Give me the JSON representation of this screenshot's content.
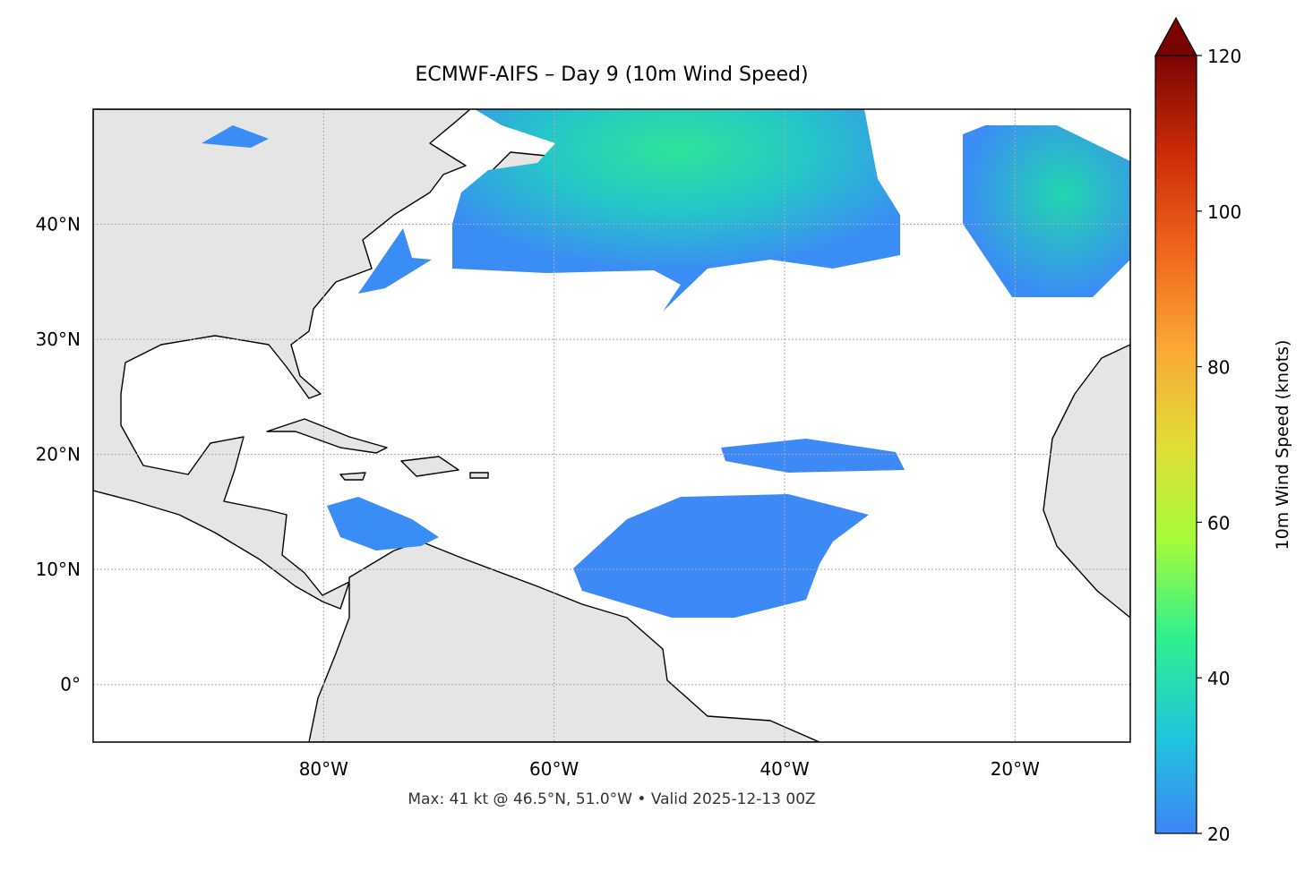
{
  "map": {
    "title": "ECMWF-AIFS – Day 9 (10m Wind Speed)",
    "footer": "Max: 41 kt @ 46.5°N, 51.0°W • Valid 2025-12-13 00Z",
    "xlim": [
      -100,
      -10
    ],
    "ylim": [
      -5,
      50
    ],
    "xticks": [
      {
        "value": -80,
        "label": "80°W"
      },
      {
        "value": -60,
        "label": "60°W"
      },
      {
        "value": -40,
        "label": "40°W"
      },
      {
        "value": -20,
        "label": "20°W"
      }
    ],
    "yticks": [
      {
        "value": 0,
        "label": "0°"
      },
      {
        "value": 10,
        "label": "10°N"
      },
      {
        "value": 20,
        "label": "20°N"
      },
      {
        "value": 30,
        "label": "30°N"
      },
      {
        "value": 40,
        "label": "40°N"
      }
    ],
    "grid": true
  },
  "colorbar": {
    "label": "10m Wind Speed (knots)",
    "lim": [
      20,
      120
    ],
    "ticks": [
      20,
      40,
      60,
      80,
      100,
      120
    ],
    "extend": "max",
    "colors": [
      "#3d85f7",
      "#1fc6dc",
      "#2ef08f",
      "#a4fb3a",
      "#e1dd37",
      "#fba735",
      "#f0651c",
      "#cb2c06",
      "#7a0403"
    ]
  }
}
